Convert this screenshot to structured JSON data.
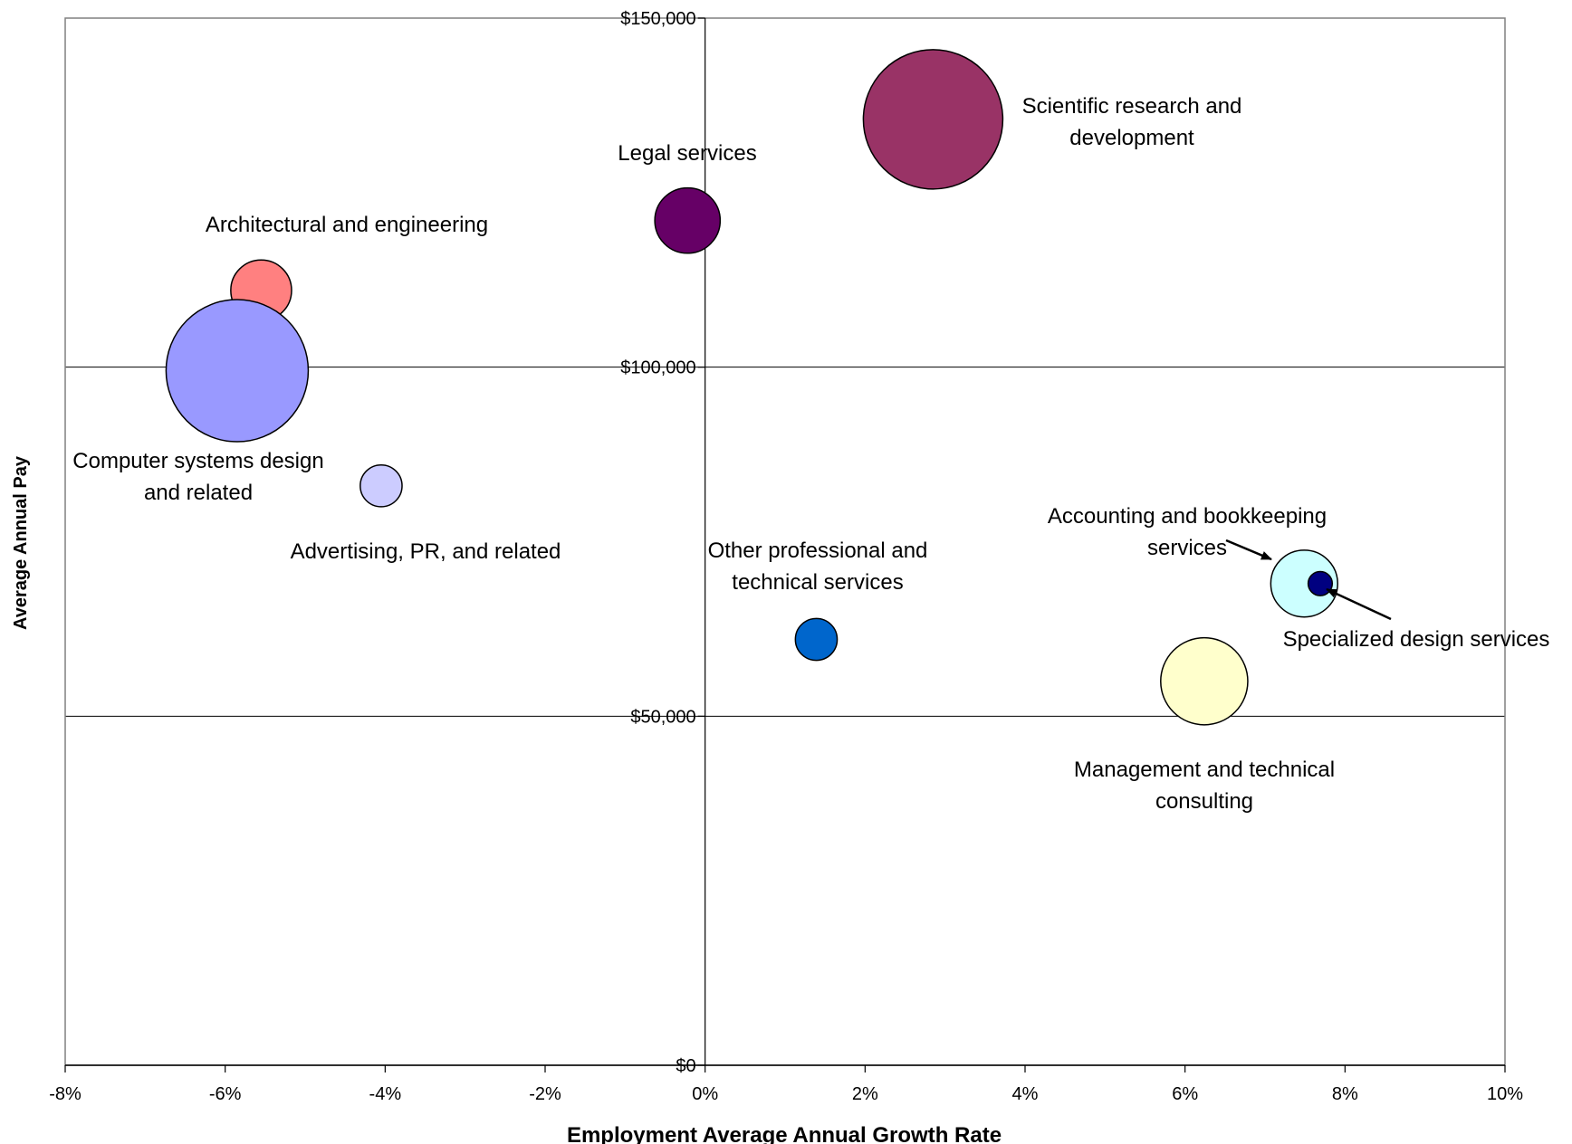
{
  "chart_data": {
    "type": "bubble",
    "title": "",
    "xlabel": "Employment Average Annual Growth Rate",
    "ylabel": "Average Annual Pay",
    "xlim": [
      -0.08,
      0.1
    ],
    "ylim": [
      0,
      150000
    ],
    "x_ticks": [
      {
        "value": -0.08,
        "label": "-8%"
      },
      {
        "value": -0.06,
        "label": "-6%"
      },
      {
        "value": -0.04,
        "label": "-4%"
      },
      {
        "value": -0.02,
        "label": "-2%"
      },
      {
        "value": 0.0,
        "label": "0%"
      },
      {
        "value": 0.02,
        "label": "2%"
      },
      {
        "value": 0.04,
        "label": "4%"
      },
      {
        "value": 0.06,
        "label": "6%"
      },
      {
        "value": 0.08,
        "label": "8%"
      },
      {
        "value": 0.1,
        "label": "10%"
      }
    ],
    "y_ticks": [
      {
        "value": 0,
        "label": "$0"
      },
      {
        "value": 50000,
        "label": "$50,000"
      },
      {
        "value": 100000,
        "label": "$100,000"
      },
      {
        "value": 150000,
        "label": "$150,000"
      }
    ],
    "gridlines": "horizontal",
    "legend": "none",
    "points": [
      {
        "name": "Scientific research and development",
        "label_lines": [
          "Scientific research and",
          "development"
        ],
        "x": 0.0285,
        "y": 135500,
        "size": 1.0,
        "color": "#993366"
      },
      {
        "name": "Legal services",
        "label_lines": [
          "Legal services"
        ],
        "x": -0.0022,
        "y": 121000,
        "size": 0.22,
        "color": "#660066"
      },
      {
        "name": "Architectural and engineering",
        "label_lines": [
          "Architectural and engineering"
        ],
        "x": -0.0555,
        "y": 111000,
        "size": 0.19,
        "color": "#FF8080"
      },
      {
        "name": "Computer systems design and related",
        "label_lines": [
          "Computer systems design",
          "and related"
        ],
        "x": -0.0585,
        "y": 99500,
        "size": 1.04,
        "color": "#9999FF"
      },
      {
        "name": "Advertising, PR, and related",
        "label_lines": [
          "Advertising, PR, and related"
        ],
        "x": -0.0405,
        "y": 83000,
        "size": 0.09,
        "color": "#CCCCFF"
      },
      {
        "name": "Other professional and technical services",
        "label_lines": [
          "Other professional and",
          "technical services"
        ],
        "x": 0.0139,
        "y": 61000,
        "size": 0.09,
        "color": "#0066CC"
      },
      {
        "name": "Accounting and bookkeeping services",
        "label_lines": [
          "Accounting and bookkeeping",
          "services"
        ],
        "x": 0.0749,
        "y": 69000,
        "size": 0.23,
        "color": "#CCFFFF"
      },
      {
        "name": "Specialized design services",
        "label_lines": [
          "Specialized design services"
        ],
        "x": 0.0769,
        "y": 69000,
        "size": 0.03,
        "color": "#000080"
      },
      {
        "name": "Management and technical consulting",
        "label_lines": [
          "Management and technical",
          "consulting"
        ],
        "x": 0.0624,
        "y": 55000,
        "size": 0.39,
        "color": "#FFFFCC"
      }
    ]
  }
}
